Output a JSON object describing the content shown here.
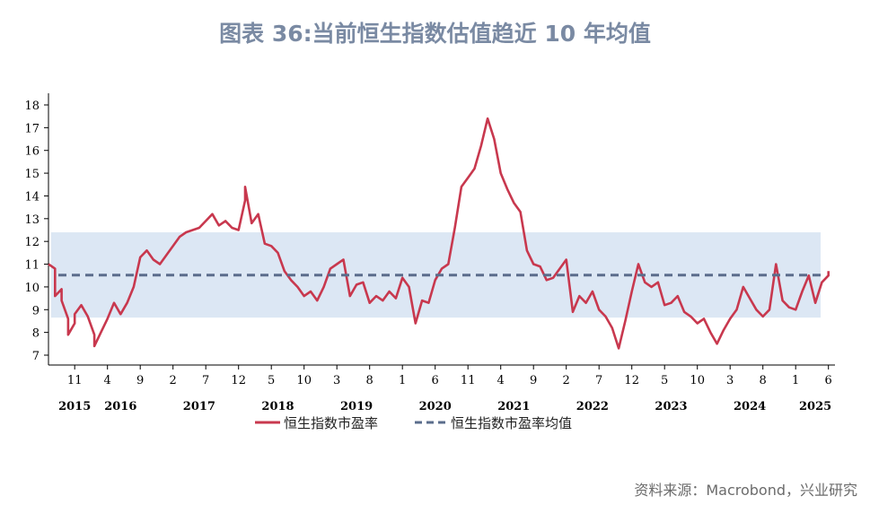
{
  "title": "图表 36:当前恒生指数估值趋近  10  年均值",
  "source": "资料来源：Macrobond，兴业研究",
  "colors": {
    "series_line": "#c8384e",
    "mean_line": "#5b6d8c",
    "band": "#dce7f4",
    "axis": "#000000"
  },
  "legend": [
    {
      "label": "恒生指数市盈率",
      "style": "solid"
    },
    {
      "label": "恒生指数市盈率均值",
      "style": "dashed"
    }
  ],
  "chart_data": {
    "type": "line",
    "ylim": [
      7,
      18
    ],
    "yticks": [
      7,
      8,
      9,
      10,
      11,
      12,
      13,
      14,
      15,
      16,
      17,
      18
    ],
    "x_range": [
      "2015-07",
      "2025-07"
    ],
    "month_ticks": [
      {
        "date": "2015-11",
        "label": "11"
      },
      {
        "date": "2016-04",
        "label": "4"
      },
      {
        "date": "2016-09",
        "label": "9"
      },
      {
        "date": "2017-02",
        "label": "2"
      },
      {
        "date": "2017-07",
        "label": "7"
      },
      {
        "date": "2017-12",
        "label": "12"
      },
      {
        "date": "2018-05",
        "label": "5"
      },
      {
        "date": "2018-10",
        "label": "10"
      },
      {
        "date": "2019-03",
        "label": "3"
      },
      {
        "date": "2019-08",
        "label": "8"
      },
      {
        "date": "2020-01",
        "label": "1"
      },
      {
        "date": "2020-06",
        "label": "6"
      },
      {
        "date": "2020-11",
        "label": "11"
      },
      {
        "date": "2021-04",
        "label": "4"
      },
      {
        "date": "2021-09",
        "label": "9"
      },
      {
        "date": "2022-02",
        "label": "2"
      },
      {
        "date": "2022-07",
        "label": "7"
      },
      {
        "date": "2022-12",
        "label": "12"
      },
      {
        "date": "2023-05",
        "label": "5"
      },
      {
        "date": "2023-10",
        "label": "10"
      },
      {
        "date": "2024-03",
        "label": "3"
      },
      {
        "date": "2024-08",
        "label": "8"
      },
      {
        "date": "2025-01",
        "label": "1"
      },
      {
        "date": "2025-06",
        "label": "6"
      }
    ],
    "year_labels": [
      {
        "date": "2015-11",
        "label": "2015"
      },
      {
        "date": "2016-06",
        "label": "2016"
      },
      {
        "date": "2017-06",
        "label": "2017"
      },
      {
        "date": "2018-06",
        "label": "2018"
      },
      {
        "date": "2019-06",
        "label": "2019"
      },
      {
        "date": "2020-06",
        "label": "2020"
      },
      {
        "date": "2021-06",
        "label": "2021"
      },
      {
        "date": "2022-06",
        "label": "2022"
      },
      {
        "date": "2023-06",
        "label": "2023"
      },
      {
        "date": "2024-06",
        "label": "2024"
      },
      {
        "date": "2025-04",
        "label": "2025"
      }
    ],
    "band": {
      "from": 8.65,
      "to": 12.4
    },
    "mean": 10.52,
    "series": [
      {
        "name": "恒生指数市盈率",
        "points": [
          [
            "2015-07",
            11.0
          ],
          [
            "2015-08",
            10.8
          ],
          [
            "2015-08",
            9.6
          ],
          [
            "2015-09",
            9.9
          ],
          [
            "2015-09",
            9.4
          ],
          [
            "2015-10",
            8.6
          ],
          [
            "2015-10",
            7.9
          ],
          [
            "2015-11",
            8.4
          ],
          [
            "2015-11",
            8.8
          ],
          [
            "2015-12",
            9.2
          ],
          [
            "2016-01",
            8.7
          ],
          [
            "2016-02",
            7.9
          ],
          [
            "2016-02",
            7.4
          ],
          [
            "2016-03",
            8.0
          ],
          [
            "2016-04",
            8.6
          ],
          [
            "2016-05",
            9.3
          ],
          [
            "2016-06",
            8.8
          ],
          [
            "2016-07",
            9.3
          ],
          [
            "2016-08",
            10.0
          ],
          [
            "2016-09",
            11.3
          ],
          [
            "2016-10",
            11.6
          ],
          [
            "2016-11",
            11.2
          ],
          [
            "2016-12",
            11.0
          ],
          [
            "2017-01",
            11.4
          ],
          [
            "2017-02",
            11.8
          ],
          [
            "2017-03",
            12.2
          ],
          [
            "2017-04",
            12.4
          ],
          [
            "2017-05",
            12.5
          ],
          [
            "2017-06",
            12.6
          ],
          [
            "2017-07",
            12.9
          ],
          [
            "2017-08",
            13.2
          ],
          [
            "2017-09",
            12.7
          ],
          [
            "2017-10",
            12.9
          ],
          [
            "2017-11",
            12.6
          ],
          [
            "2017-12",
            12.5
          ],
          [
            "2018-01",
            13.8
          ],
          [
            "2018-01",
            14.4
          ],
          [
            "2018-02",
            12.8
          ],
          [
            "2018-03",
            13.2
          ],
          [
            "2018-04",
            11.9
          ],
          [
            "2018-05",
            11.8
          ],
          [
            "2018-06",
            11.5
          ],
          [
            "2018-07",
            10.7
          ],
          [
            "2018-08",
            10.3
          ],
          [
            "2018-09",
            10.0
          ],
          [
            "2018-10",
            9.6
          ],
          [
            "2018-11",
            9.8
          ],
          [
            "2018-12",
            9.4
          ],
          [
            "2019-01",
            10.0
          ],
          [
            "2019-02",
            10.8
          ],
          [
            "2019-03",
            11.0
          ],
          [
            "2019-04",
            11.2
          ],
          [
            "2019-05",
            9.6
          ],
          [
            "2019-06",
            10.1
          ],
          [
            "2019-07",
            10.2
          ],
          [
            "2019-08",
            9.3
          ],
          [
            "2019-09",
            9.6
          ],
          [
            "2019-10",
            9.4
          ],
          [
            "2019-11",
            9.8
          ],
          [
            "2019-12",
            9.5
          ],
          [
            "2020-01",
            10.4
          ],
          [
            "2020-02",
            10.0
          ],
          [
            "2020-03",
            8.4
          ],
          [
            "2020-04",
            9.4
          ],
          [
            "2020-05",
            9.3
          ],
          [
            "2020-06",
            10.3
          ],
          [
            "2020-07",
            10.8
          ],
          [
            "2020-08",
            11.0
          ],
          [
            "2020-09",
            12.6
          ],
          [
            "2020-10",
            14.4
          ],
          [
            "2020-11",
            14.8
          ],
          [
            "2020-12",
            15.2
          ],
          [
            "2021-01",
            16.2
          ],
          [
            "2021-02",
            17.4
          ],
          [
            "2021-03",
            16.5
          ],
          [
            "2021-04",
            15.0
          ],
          [
            "2021-05",
            14.3
          ],
          [
            "2021-06",
            13.7
          ],
          [
            "2021-07",
            13.3
          ],
          [
            "2021-08",
            11.6
          ],
          [
            "2021-09",
            11.0
          ],
          [
            "2021-10",
            10.9
          ],
          [
            "2021-11",
            10.3
          ],
          [
            "2021-12",
            10.4
          ],
          [
            "2022-01",
            10.8
          ],
          [
            "2022-02",
            11.2
          ],
          [
            "2022-03",
            8.9
          ],
          [
            "2022-04",
            9.6
          ],
          [
            "2022-05",
            9.3
          ],
          [
            "2022-06",
            9.8
          ],
          [
            "2022-07",
            9.0
          ],
          [
            "2022-08",
            8.7
          ],
          [
            "2022-09",
            8.2
          ],
          [
            "2022-10",
            7.3
          ],
          [
            "2022-11",
            8.5
          ],
          [
            "2022-12",
            9.8
          ],
          [
            "2023-01",
            11.0
          ],
          [
            "2023-02",
            10.2
          ],
          [
            "2023-03",
            10.0
          ],
          [
            "2023-04",
            10.2
          ],
          [
            "2023-05",
            9.2
          ],
          [
            "2023-06",
            9.3
          ],
          [
            "2023-07",
            9.6
          ],
          [
            "2023-08",
            8.9
          ],
          [
            "2023-09",
            8.7
          ],
          [
            "2023-10",
            8.4
          ],
          [
            "2023-11",
            8.6
          ],
          [
            "2023-12",
            8.0
          ],
          [
            "2024-01",
            7.5
          ],
          [
            "2024-02",
            8.1
          ],
          [
            "2024-03",
            8.6
          ],
          [
            "2024-04",
            9.0
          ],
          [
            "2024-05",
            10.0
          ],
          [
            "2024-06",
            9.5
          ],
          [
            "2024-07",
            9.0
          ],
          [
            "2024-08",
            8.7
          ],
          [
            "2024-09",
            9.0
          ],
          [
            "2024-10",
            11.0
          ],
          [
            "2024-11",
            9.4
          ],
          [
            "2024-12",
            9.1
          ],
          [
            "2025-01",
            9.0
          ],
          [
            "2025-02",
            9.8
          ],
          [
            "2025-03",
            10.5
          ],
          [
            "2025-04",
            9.3
          ],
          [
            "2025-05",
            10.2
          ],
          [
            "2025-06",
            10.5
          ],
          [
            "2025-06",
            10.7
          ]
        ]
      },
      {
        "name": "恒生指数市盈率均值",
        "value": 10.52
      }
    ]
  }
}
